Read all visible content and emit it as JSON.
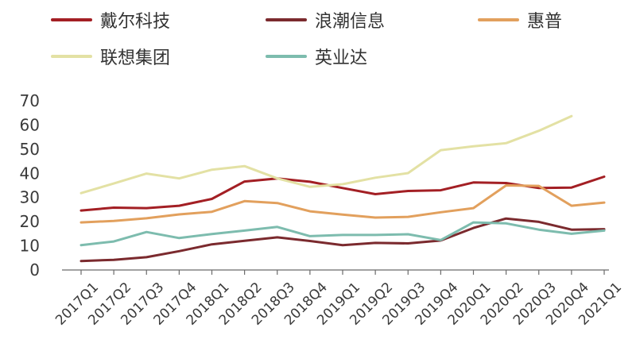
{
  "chart_data": {
    "type": "line",
    "title": "",
    "xlabel": "",
    "ylabel": "",
    "ylim": [
      0,
      70
    ],
    "yticks": [
      0,
      10,
      20,
      30,
      40,
      50,
      60,
      70
    ],
    "grid": false,
    "legend_position": "top",
    "categories": [
      "2017Q1",
      "2017Q2",
      "2017Q3",
      "2017Q4",
      "2018Q1",
      "2018Q2",
      "2018Q3",
      "2018Q4",
      "2019Q1",
      "2019Q2",
      "2019Q3",
      "2019Q4",
      "2020Q1",
      "2020Q2",
      "2020Q3",
      "2020Q4",
      "2021Q1"
    ],
    "series": [
      {
        "name": "戴尔科技",
        "color": "#a31f24",
        "values": [
          24.6,
          25.8,
          25.6,
          26.6,
          29.4,
          36.6,
          37.9,
          36.5,
          33.9,
          31.4,
          32.7,
          33.0,
          36.2,
          36.0,
          33.9,
          34.1,
          38.6
        ]
      },
      {
        "name": "浪潮信息",
        "color": "#7b2a2e",
        "values": [
          3.7,
          4.2,
          5.3,
          7.8,
          10.6,
          12.1,
          13.5,
          12.0,
          10.3,
          11.2,
          11.0,
          12.2,
          17.4,
          21.3,
          19.9,
          16.7,
          16.9
        ]
      },
      {
        "name": "惠普",
        "color": "#e2a05d",
        "values": [
          19.7,
          20.3,
          21.4,
          23.0,
          24.1,
          28.5,
          27.7,
          24.3,
          22.9,
          21.7,
          22.0,
          23.9,
          25.6,
          35.0,
          34.8,
          26.6,
          27.9
        ]
      },
      {
        "name": "联想集团",
        "color": "#e3e1a4",
        "values": [
          31.8,
          35.8,
          39.9,
          37.9,
          41.5,
          43.0,
          37.9,
          34.4,
          35.5,
          38.2,
          40.1,
          49.6,
          51.2,
          52.5,
          57.6,
          63.7,
          null
        ]
      },
      {
        "name": "英业达",
        "color": "#7dbcae",
        "values": [
          10.3,
          11.8,
          15.7,
          13.2,
          14.9,
          16.3,
          17.8,
          14.0,
          14.5,
          14.5,
          14.8,
          12.4,
          19.7,
          19.3,
          16.7,
          15.0,
          16.3
        ]
      }
    ]
  }
}
